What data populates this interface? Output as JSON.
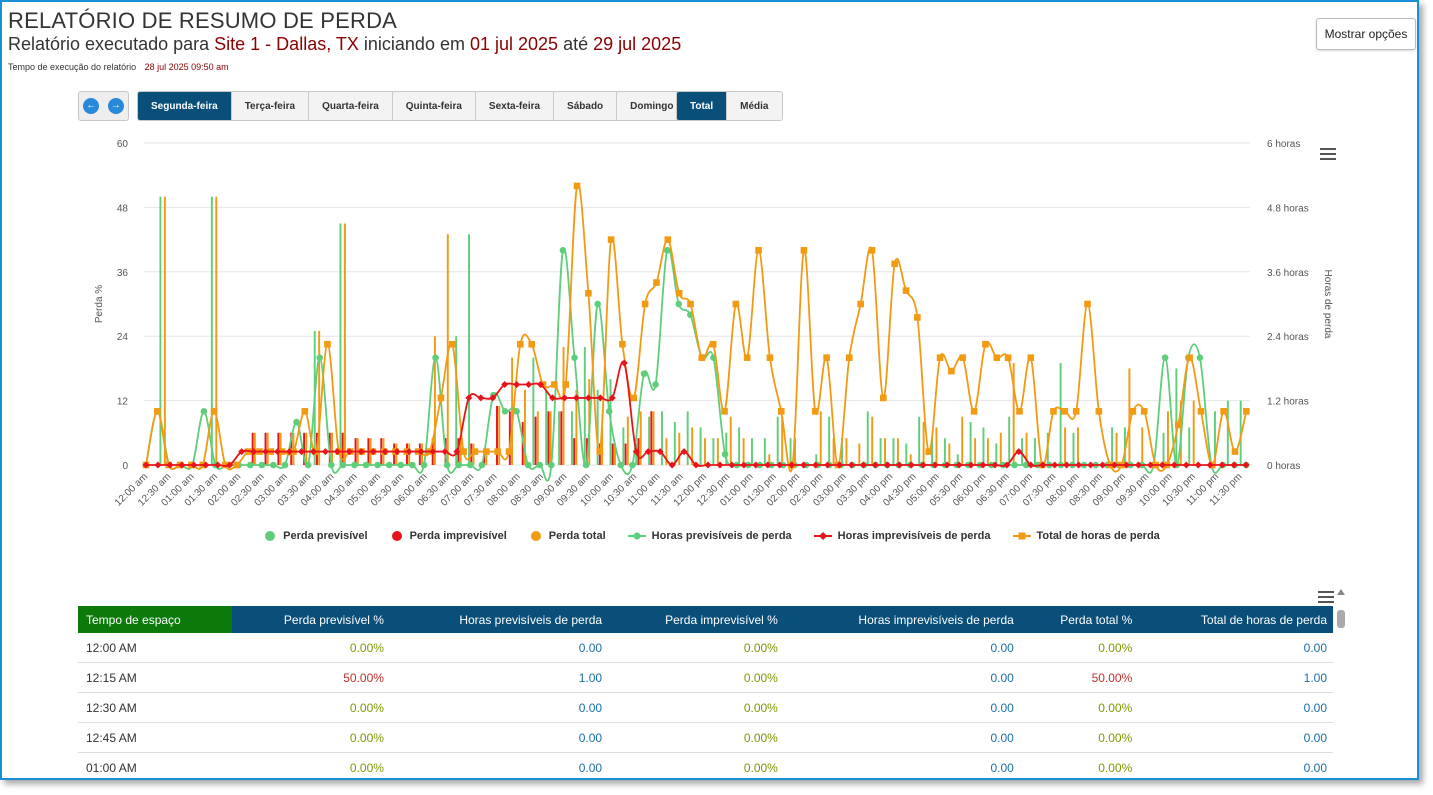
{
  "header": {
    "title": "RELATÓRIO DE RESUMO DE PERDA",
    "subtitle_prefix": "Relatório executado para",
    "site": "Site 1 - Dallas, TX",
    "subtitle_mid": "iniciando em",
    "start_date": "01 jul 2025",
    "subtitle_until": "até",
    "end_date": "29 jul 2025",
    "exec_label": "Tempo de execução do relatório",
    "exec_time": "28 jul 2025 09:50 am",
    "options_button": "Mostrar opções"
  },
  "days": [
    "Segunda-feira",
    "Terça-feira",
    "Quarta-feira",
    "Quinta-feira",
    "Sexta-feira",
    "Sábado",
    "Domingo"
  ],
  "active_day": 0,
  "modes": [
    "Total",
    "Média"
  ],
  "active_mode": 0,
  "colors": {
    "green": "#5fce7a",
    "red": "#e8141b",
    "orange": "#f29a12",
    "navy": "#0a4f7a",
    "frame": "#1a8fd6"
  },
  "chart_data": {
    "type": "bar+line",
    "ylabel": "Perda %",
    "y2label": "Horas de perda",
    "ylim": [
      0,
      60
    ],
    "y2lim": [
      0,
      6
    ],
    "y_ticks": [
      "0",
      "12",
      "24",
      "36",
      "48",
      "60"
    ],
    "y2_ticks": [
      "0 horas",
      "1.2 horas",
      "2.4 horas",
      "3.6 horas",
      "4.8 horas",
      "6 horas"
    ],
    "x_tick_labels": [
      "12:00 am",
      "12:30 am",
      "01:00 am",
      "01:30 am",
      "02:00 am",
      "02:30 am",
      "03:00 am",
      "03:30 am",
      "04:00 am",
      "04:30 am",
      "05:00 am",
      "05:30 am",
      "06:00 am",
      "06:30 am",
      "07:00 am",
      "07:30 am",
      "08:00 am",
      "08:30 am",
      "09:00 am",
      "09:30 am",
      "10:00 am",
      "10:30 am",
      "11:00 am",
      "11:30 am",
      "12:00 pm",
      "12:30 pm",
      "01:00 pm",
      "01:30 pm",
      "02:00 pm",
      "02:30 pm",
      "03:00 pm",
      "03:30 pm",
      "04:00 pm",
      "04:30 pm",
      "05:00 pm",
      "05:30 pm",
      "06:00 pm",
      "06:30 pm",
      "07:00 pm",
      "07:30 pm",
      "08:00 pm",
      "08:30 pm",
      "09:00 pm",
      "09:30 pm",
      "10:00 pm",
      "10:30 pm",
      "11:00 pm",
      "11:30 pm"
    ],
    "series": [
      {
        "name": "Perda previsível",
        "kind": "bar",
        "color": "#5fce7a",
        "values": [
          0,
          50,
          0,
          0,
          0,
          50,
          0,
          0,
          0,
          0,
          0,
          0,
          0,
          25,
          0,
          45,
          0,
          0,
          0,
          0,
          0,
          0,
          0,
          0,
          24,
          43,
          0,
          0,
          0,
          0,
          20,
          14,
          10,
          10,
          22,
          14,
          16,
          7,
          4,
          9,
          10,
          8,
          10,
          7,
          5,
          6,
          7,
          5,
          5,
          9,
          5,
          0,
          2,
          9,
          5,
          0,
          10,
          5,
          5,
          4,
          9,
          5,
          5,
          2,
          8,
          7,
          4,
          9,
          5,
          5,
          6,
          19,
          6,
          0,
          0,
          7,
          7,
          0,
          0,
          6,
          18,
          7,
          0,
          10,
          12,
          12
        ]
      },
      {
        "name": "Perda imprevisível",
        "kind": "bar",
        "color": "#e8141b",
        "values": [
          0,
          0,
          0,
          0,
          0,
          0,
          0,
          0,
          6,
          6,
          6,
          6,
          6,
          6,
          6,
          6,
          5,
          5,
          5,
          4,
          4,
          4,
          5,
          5,
          5,
          4,
          3,
          11,
          10,
          8,
          9,
          10,
          10,
          5,
          5,
          4,
          4,
          4,
          5,
          10,
          0,
          0,
          0,
          0,
          0,
          0,
          0,
          0,
          0,
          0,
          0,
          0,
          0,
          0,
          0,
          0,
          0,
          0,
          0,
          0,
          0,
          0,
          0,
          0,
          0,
          0,
          0,
          0,
          0,
          0,
          0,
          0,
          0,
          0,
          0,
          0,
          0,
          0,
          0,
          0,
          0,
          0,
          0,
          0,
          0,
          0
        ]
      },
      {
        "name": "Perda total",
        "kind": "bar",
        "color": "#f29a12",
        "values": [
          0,
          50,
          0,
          0,
          0,
          50,
          0,
          0,
          6,
          6,
          6,
          6,
          6,
          25,
          6,
          45,
          5,
          5,
          5,
          4,
          4,
          4,
          24,
          43,
          5,
          4,
          3,
          11,
          20,
          14,
          10,
          10,
          22,
          14,
          16,
          7,
          4,
          9,
          10,
          10,
          5,
          6,
          7,
          5,
          5,
          9,
          5,
          0,
          2,
          9,
          5,
          0,
          10,
          5,
          5,
          4,
          9,
          5,
          5,
          2,
          8,
          7,
          4,
          9,
          5,
          5,
          6,
          19,
          6,
          0,
          0,
          7,
          7,
          0,
          0,
          6,
          18,
          7,
          0,
          10,
          12,
          12
        ]
      },
      {
        "name": "Horas previsíveis de perda",
        "kind": "line",
        "color": "#5fce7a",
        "values": [
          0,
          1,
          0,
          0,
          0,
          1,
          0,
          0,
          0,
          0,
          0,
          0,
          0,
          0.8,
          0,
          2,
          0,
          0,
          0,
          0,
          0,
          0,
          0,
          0,
          0,
          2,
          0,
          0,
          0,
          0,
          1.3,
          1,
          1,
          0,
          0,
          0,
          4,
          2,
          0,
          3,
          1,
          0,
          0,
          1.7,
          1.5,
          4,
          3,
          2.8,
          2,
          2,
          0.2,
          0,
          0,
          0,
          0,
          0,
          0,
          0,
          0,
          0,
          0,
          0,
          0,
          0,
          0,
          0,
          0,
          0,
          0,
          0,
          0,
          0,
          0,
          0,
          0,
          0,
          0,
          0,
          0,
          0,
          0,
          0,
          0,
          0,
          0,
          0,
          0,
          0,
          2,
          0,
          2,
          2,
          0,
          0,
          0,
          0
        ]
      },
      {
        "name": "Horas imprevisíveis de perda",
        "kind": "line",
        "color": "#e8141b",
        "values": [
          0,
          0,
          0,
          0,
          0,
          0,
          0,
          0,
          0.25,
          0.25,
          0.25,
          0.25,
          0.25,
          0.25,
          0.25,
          0.25,
          0.25,
          0.25,
          0.25,
          0.25,
          0.25,
          0.25,
          0.25,
          0.25,
          0.25,
          0.25,
          0.25,
          1.25,
          1.25,
          1.25,
          1.5,
          1.5,
          1.5,
          1.5,
          1.25,
          1.25,
          1.25,
          1.25,
          1.25,
          1.25,
          1.9,
          0.25,
          0.25,
          0.25,
          0,
          0.25,
          0,
          0,
          0,
          0,
          0,
          0,
          0,
          0,
          0,
          0,
          0,
          0,
          0,
          0,
          0,
          0,
          0,
          0,
          0,
          0,
          0,
          0,
          0,
          0,
          0,
          0,
          0,
          0.25,
          0,
          0,
          0,
          0,
          0,
          0,
          0,
          0,
          0,
          0,
          0,
          0,
          0,
          0,
          0,
          0,
          0,
          0,
          0
        ]
      },
      {
        "name": "Total de horas de perda",
        "kind": "line",
        "color": "#f29a12",
        "values": [
          0,
          1,
          0,
          0,
          0,
          0,
          1,
          0,
          0,
          0.25,
          0.25,
          0.25,
          0.25,
          0.25,
          1,
          0.25,
          2.25,
          0.25,
          0.25,
          0.25,
          0.25,
          0.25,
          0.25,
          0.25,
          0.25,
          0.25,
          1.25,
          2.25,
          0.25,
          0.25,
          0.25,
          0.25,
          0.25,
          2.25,
          2.25,
          1.5,
          1.5,
          1.5,
          5.2,
          3.2,
          0.25,
          4.2,
          2.25,
          1.25,
          3,
          3.4,
          4.2,
          3.2,
          3,
          2,
          2.25,
          1,
          3,
          2,
          4,
          2,
          1,
          0,
          4,
          1,
          2,
          0,
          2,
          3,
          4,
          1.25,
          3.75,
          3.25,
          2.75,
          0.25,
          2,
          1.75,
          2,
          1,
          2.25,
          2,
          2,
          1,
          2,
          0,
          1,
          1,
          1,
          3,
          1,
          0,
          0,
          1,
          1,
          0,
          0,
          0.75,
          2,
          1,
          0,
          1,
          0.25,
          1
        ]
      }
    ],
    "legend_position": "bottom"
  },
  "table": {
    "headers": [
      "Tempo de espaço",
      "Perda previsível %",
      "Horas previsíveis de perda",
      "Perda imprevisível %",
      "Horas imprevisíveis de perda",
      "Perda total %",
      "Total de horas de perda"
    ],
    "rows": [
      [
        "12:00 AM",
        "0.00%",
        "0.00",
        "0.00%",
        "0.00",
        "0.00%",
        "0.00"
      ],
      [
        "12:15 AM",
        "50.00%",
        "1.00",
        "0.00%",
        "0.00",
        "50.00%",
        "1.00"
      ],
      [
        "12:30 AM",
        "0.00%",
        "0.00",
        "0.00%",
        "0.00",
        "0.00%",
        "0.00"
      ],
      [
        "12:45 AM",
        "0.00%",
        "0.00",
        "0.00%",
        "0.00",
        "0.00%",
        "0.00"
      ],
      [
        "01:00 AM",
        "0.00%",
        "0.00",
        "0.00%",
        "0.00",
        "0.00%",
        "0.00"
      ]
    ]
  }
}
